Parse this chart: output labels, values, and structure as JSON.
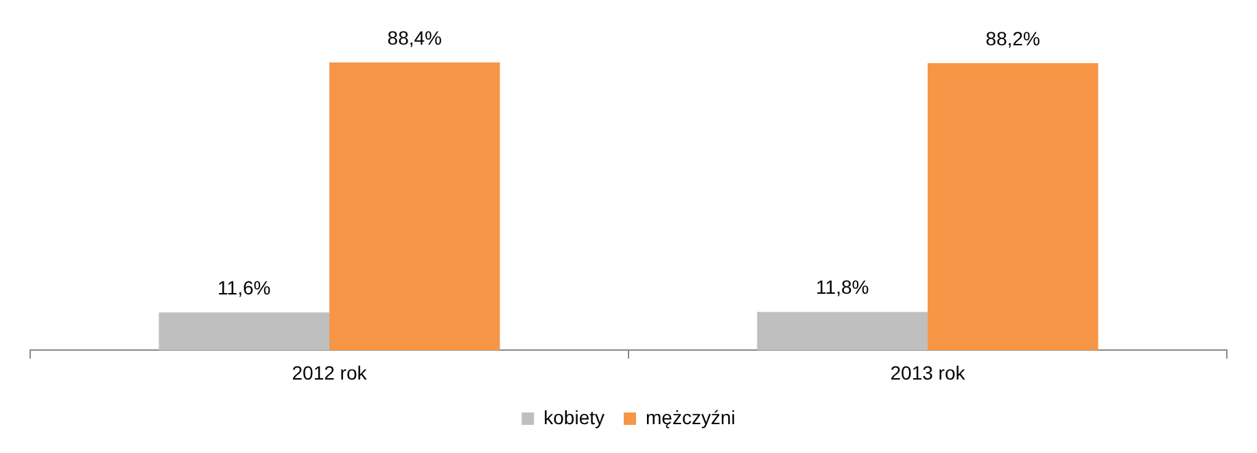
{
  "chart_data": {
    "type": "bar",
    "categories": [
      "2012 rok",
      "2013 rok"
    ],
    "series": [
      {
        "name": "kobiety",
        "color": "#bfbfbf",
        "values": [
          11.6,
          11.8
        ],
        "value_labels": [
          "11,6%",
          "11,8%"
        ]
      },
      {
        "name": "mężczyźni",
        "color": "#f79646",
        "values": [
          88.4,
          88.2
        ],
        "value_labels": [
          "88,4%",
          "88,2%"
        ]
      }
    ],
    "legend": "bottom",
    "grid": false
  }
}
